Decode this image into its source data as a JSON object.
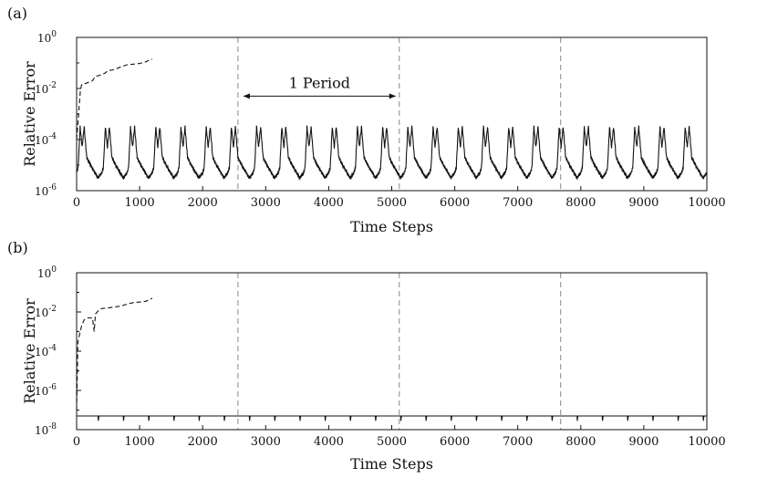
{
  "chart_data": [
    {
      "type": "line",
      "panel_label": "(a)",
      "xlabel": "Time Steps",
      "ylabel": "Relative Error",
      "xlim": [
        0,
        10000
      ],
      "ylim_log10": [
        -6,
        0
      ],
      "y_scale": "log",
      "x_ticks": [
        "0",
        "1000",
        "2000",
        "3000",
        "4000",
        "5000",
        "6000",
        "7000",
        "8000",
        "9000",
        "10000"
      ],
      "y_ticks": [
        {
          "base": "10",
          "exp": "0"
        },
        {
          "base": "10",
          "exp": "-2"
        },
        {
          "base": "10",
          "exp": "-4"
        },
        {
          "base": "10",
          "exp": "-6"
        }
      ],
      "vlines_x": [
        2560,
        5120,
        7680
      ],
      "annotation": {
        "text": "1 Period",
        "x_start": 2560,
        "x_end": 5120,
        "y": 0.005
      },
      "series": [
        {
          "style": "dashed",
          "points": [
            [
              0,
              0.0001
            ],
            [
              20,
              0.0004
            ],
            [
              40,
              0.002
            ],
            [
              60,
              0.008
            ],
            [
              80,
              0.014
            ],
            [
              100,
              0.015
            ],
            [
              150,
              0.016
            ],
            [
              200,
              0.018
            ],
            [
              250,
              0.02
            ],
            [
              300,
              0.03
            ],
            [
              350,
              0.032
            ],
            [
              400,
              0.035
            ],
            [
              450,
              0.04
            ],
            [
              500,
              0.05
            ],
            [
              600,
              0.055
            ],
            [
              700,
              0.07
            ],
            [
              800,
              0.085
            ],
            [
              900,
              0.09
            ],
            [
              1000,
              0.095
            ],
            [
              1100,
              0.11
            ],
            [
              1150,
              0.13
            ],
            [
              1200,
              0.14
            ]
          ]
        },
        {
          "style": "solid",
          "description_values": {
            "peak": 0.0003,
            "trough": 6e-06,
            "oscillation_period_steps": 400
          },
          "points": []
        }
      ]
    },
    {
      "type": "line",
      "panel_label": "(b)",
      "xlabel": "Time Steps",
      "ylabel": "Relative Error",
      "xlim": [
        0,
        10000
      ],
      "ylim_log10": [
        -8,
        0
      ],
      "y_scale": "log",
      "x_ticks": [
        "0",
        "1000",
        "2000",
        "3000",
        "4000",
        "5000",
        "6000",
        "7000",
        "8000",
        "9000",
        "10000"
      ],
      "y_ticks": [
        {
          "base": "10",
          "exp": "0"
        },
        {
          "base": "10",
          "exp": "-2"
        },
        {
          "base": "10",
          "exp": "-4"
        },
        {
          "base": "10",
          "exp": "-6"
        },
        {
          "base": "10",
          "exp": "-8"
        }
      ],
      "vlines_x": [
        2560,
        5120,
        7680
      ],
      "series": [
        {
          "style": "dashed",
          "points": [
            [
              0,
              1e-07
            ],
            [
              20,
              0.0003
            ],
            [
              50,
              0.0008
            ],
            [
              80,
              0.002
            ],
            [
              120,
              0.004
            ],
            [
              180,
              0.005
            ],
            [
              250,
              0.005
            ],
            [
              280,
              0.001
            ],
            [
              300,
              0.008
            ],
            [
              350,
              0.012
            ],
            [
              400,
              0.015
            ],
            [
              500,
              0.016
            ],
            [
              600,
              0.018
            ],
            [
              700,
              0.02
            ],
            [
              800,
              0.025
            ],
            [
              900,
              0.03
            ],
            [
              1000,
              0.032
            ],
            [
              1100,
              0.035
            ],
            [
              1200,
              0.05
            ]
          ]
        },
        {
          "style": "solid",
          "description_values": {
            "level": 5e-08,
            "dip": 2.5e-08
          },
          "points": []
        }
      ]
    }
  ]
}
